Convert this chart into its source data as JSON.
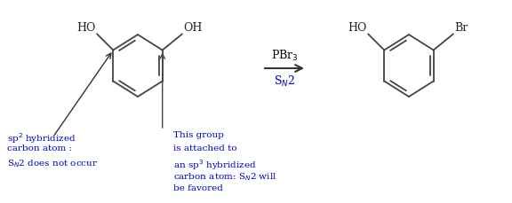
{
  "bg_color": "#ffffff",
  "text_color_blue": "#0000cd",
  "text_color_black": "#000000",
  "text_color_gray": "#555555",
  "figsize": [
    5.76,
    2.3
  ],
  "dpi": 100,
  "reagent_text": "PBr$_3$",
  "reagent_text2": "S$_N$2",
  "annotation1_lines": [
    "sp$^2$ hybridized",
    "carbon atom :",
    "S$_N$2 does not occur"
  ],
  "annotation2_lines": [
    "This group",
    "is attached to",
    "an sp$^3$ hybridized",
    "carbon atom: S$_N$2 will",
    "be favored"
  ]
}
